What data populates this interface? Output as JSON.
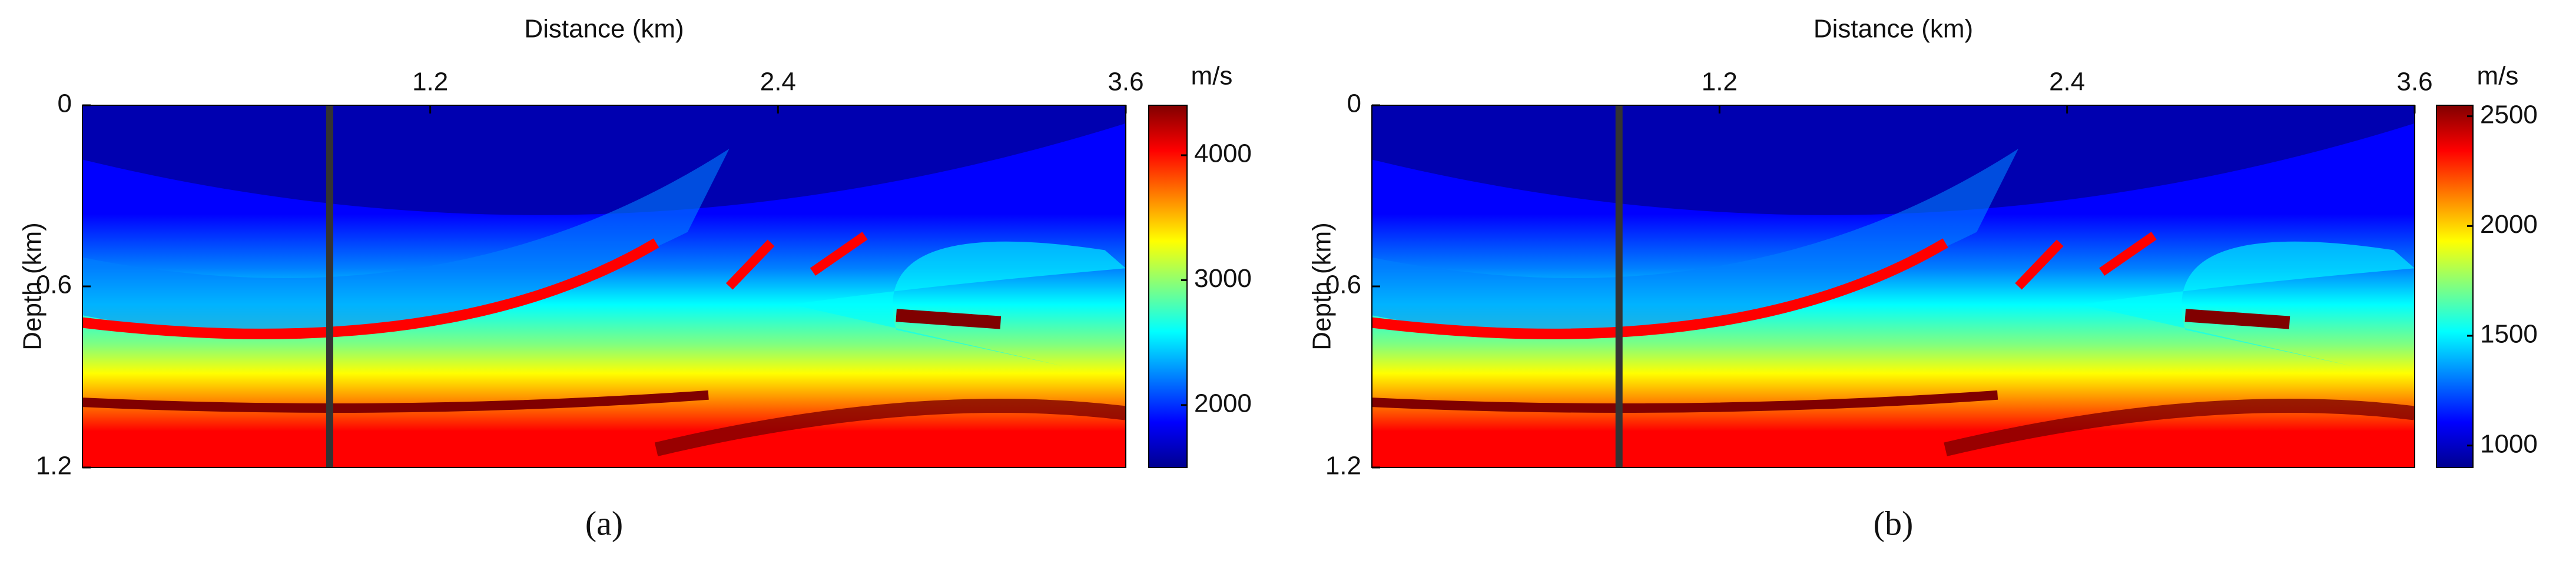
{
  "chart_data": [
    {
      "type": "heatmap",
      "panel_label": "(a)",
      "x_label": "Distance (km)",
      "y_label": "Depth (km)",
      "xlim": [
        0,
        3.6
      ],
      "xticks": [
        1.2,
        2.4,
        3.6
      ],
      "ylim": [
        1.2,
        0
      ],
      "yticks": [
        0,
        0.6,
        1.2
      ],
      "colorbar": {
        "label": "m/s",
        "lim": [
          1500,
          4400
        ],
        "ticks": [
          2000,
          3000,
          4000
        ]
      },
      "colormap": [
        "#00008f",
        "#0000ff",
        "#0080ff",
        "#00ffff",
        "#80ff80",
        "#ffff00",
        "#ff8000",
        "#ff0000",
        "#800000"
      ]
    },
    {
      "type": "heatmap",
      "panel_label": "(b)",
      "x_label": "Distance (km)",
      "y_label": "Depth (km)",
      "xlim": [
        0,
        3.6
      ],
      "xticks": [
        1.2,
        2.4,
        3.6
      ],
      "ylim": [
        1.2,
        0
      ],
      "yticks": [
        0,
        0.6,
        1.2
      ],
      "colorbar": {
        "label": "m/s",
        "lim": [
          900,
          2550
        ],
        "ticks": [
          1000,
          1500,
          2000,
          2500
        ]
      },
      "colormap": [
        "#00008f",
        "#0000ff",
        "#0080ff",
        "#00ffff",
        "#80ff80",
        "#ffff00",
        "#ff8000",
        "#ff0000",
        "#800000"
      ]
    }
  ]
}
